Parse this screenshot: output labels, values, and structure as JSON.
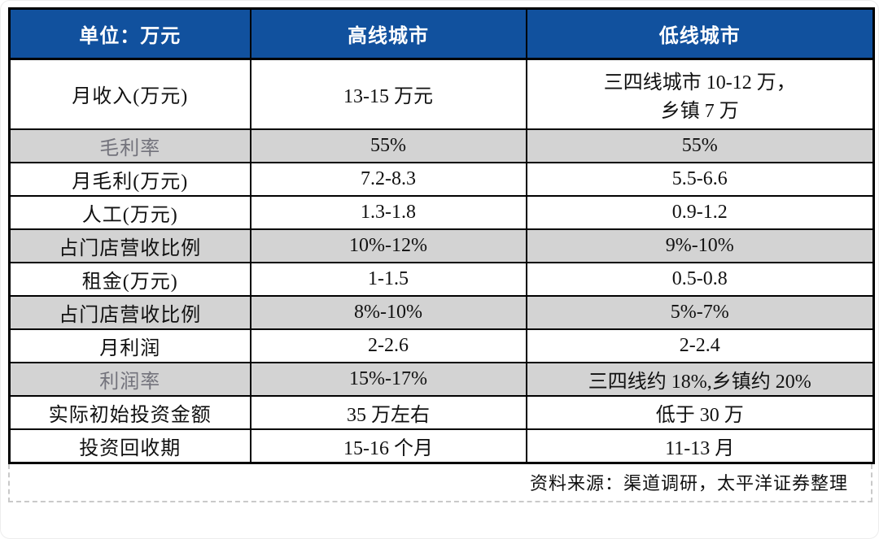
{
  "chart_data": {
    "type": "table",
    "header": {
      "unit_label": "单位：万元",
      "high_tier": "高线城市",
      "low_tier": "低线城市"
    },
    "rows": [
      {
        "label": "月收入(万元)",
        "high": "13-15 万元",
        "low": "三四线城市 10-12 万，\n乡镇 7 万"
      },
      {
        "label": "毛利率",
        "high": "55%",
        "low": "55%"
      },
      {
        "label": "月毛利(万元)",
        "high": "7.2-8.3",
        "low": "5.5-6.6"
      },
      {
        "label": "人工(万元)",
        "high": "1.3-1.8",
        "low": "0.9-1.2"
      },
      {
        "label": "占门店营收比例",
        "high": "10%-12%",
        "low": "9%-10%"
      },
      {
        "label": "租金(万元)",
        "high": "1-1.5",
        "low": "0.5-0.8"
      },
      {
        "label": "占门店营收比例",
        "high": "8%-10%",
        "low": "5%-7%"
      },
      {
        "label": "月利润",
        "high": "2-2.6",
        "low": "2-2.4"
      },
      {
        "label": "利润率",
        "high": "15%-17%",
        "low": "三四线约 18%,乡镇约 20%"
      },
      {
        "label": "实际初始投资金额",
        "high": "35 万左右",
        "low": "低于 30 万"
      },
      {
        "label": "投资回收期",
        "high": "15-16 个月",
        "low": "11-13 月"
      }
    ],
    "source_note": "资料来源：渠道调研，太平洋证券整理"
  },
  "colors": {
    "header_bg": "#11519E",
    "header_text": "#FFFFFF",
    "shaded_row_bg": "#D3D3D3",
    "muted_label_text": "#73737C",
    "body_text": "#111111",
    "table_border": "#000000",
    "dashed_border": "#C9C9C9"
  }
}
